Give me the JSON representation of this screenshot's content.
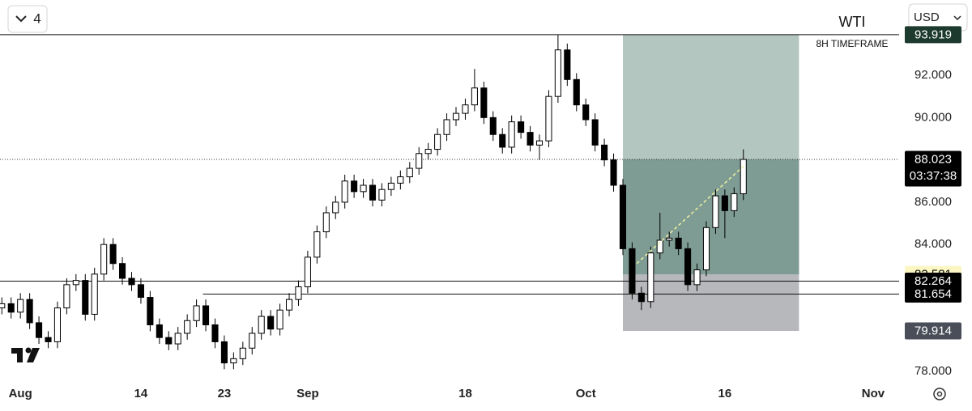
{
  "ui": {
    "interval_button": "4",
    "currency": "USD"
  },
  "chart_data": {
    "type": "candlestick",
    "title": "WTI",
    "subtitle": "8H TIMEFRAME",
    "x": [
      -2,
      -1,
      0,
      1,
      2,
      3,
      4,
      5,
      6,
      7,
      8,
      9,
      10,
      11,
      12,
      13,
      14,
      15,
      16,
      17,
      18,
      19,
      20,
      21,
      22,
      23,
      24,
      25,
      26,
      27,
      28,
      29,
      30,
      31,
      32,
      33,
      34,
      35,
      36,
      37,
      38,
      39,
      40,
      41,
      42,
      43,
      44,
      45,
      46,
      47,
      48,
      49,
      50,
      51,
      52,
      53,
      54,
      55,
      56,
      57,
      58,
      59,
      60,
      61,
      62,
      63,
      64,
      65,
      66,
      67,
      68,
      69,
      70,
      71,
      72,
      73,
      74,
      75,
      76,
      77,
      78
    ],
    "open": [
      81.0,
      81.2,
      80.8,
      81.4,
      80.3,
      79.6,
      79.4,
      81.0,
      82.1,
      82.3,
      80.7,
      82.6,
      84.0,
      83.1,
      82.4,
      82.1,
      81.5,
      80.2,
      79.6,
      79.3,
      79.8,
      80.4,
      81.1,
      80.2,
      79.4,
      78.4,
      78.6,
      79.1,
      79.8,
      80.6,
      80.0,
      80.9,
      81.4,
      82.0,
      83.4,
      84.6,
      85.5,
      86.0,
      87.0,
      86.5,
      86.8,
      86.1,
      86.6,
      86.9,
      87.2,
      87.6,
      88.3,
      88.5,
      89.2,
      89.9,
      90.2,
      90.6,
      91.4,
      90.0,
      89.2,
      88.6,
      89.8,
      89.3,
      88.7,
      88.9,
      91.0,
      93.2,
      91.8,
      90.6,
      89.9,
      88.7,
      88.0,
      86.8,
      83.8,
      81.7,
      81.3,
      83.6,
      84.2,
      84.3,
      83.8,
      82.1,
      82.8,
      84.8,
      86.3,
      85.6,
      86.4
    ],
    "high": [
      81.5,
      81.5,
      81.7,
      81.7,
      80.6,
      79.9,
      81.3,
      82.4,
      82.6,
      82.6,
      82.9,
      84.3,
      84.3,
      83.4,
      82.7,
      82.4,
      81.8,
      80.5,
      79.9,
      80.1,
      80.7,
      81.4,
      81.4,
      80.5,
      79.7,
      78.9,
      79.4,
      80.1,
      80.9,
      80.9,
      81.2,
      81.7,
      82.3,
      83.7,
      84.9,
      85.8,
      86.3,
      87.3,
      87.3,
      87.1,
      87.1,
      86.9,
      87.2,
      87.5,
      87.9,
      88.6,
      88.8,
      89.5,
      90.2,
      90.5,
      90.9,
      92.3,
      91.7,
      90.3,
      89.5,
      90.1,
      90.1,
      89.6,
      89.2,
      91.3,
      93.9,
      93.5,
      92.1,
      90.9,
      90.2,
      89.0,
      88.3,
      87.1,
      84.1,
      82.0,
      83.9,
      85.5,
      84.6,
      84.6,
      84.1,
      83.1,
      85.1,
      86.6,
      86.6,
      86.7,
      88.5
    ],
    "low": [
      80.7,
      80.5,
      80.5,
      80.0,
      79.3,
      79.1,
      79.1,
      80.7,
      81.8,
      80.4,
      80.4,
      82.3,
      82.8,
      82.1,
      81.8,
      81.2,
      79.9,
      79.3,
      79.0,
      79.0,
      79.5,
      80.1,
      79.9,
      79.1,
      78.1,
      78.1,
      78.3,
      78.8,
      79.5,
      79.7,
      79.7,
      80.6,
      81.1,
      81.7,
      83.1,
      84.3,
      85.2,
      85.7,
      86.2,
      86.2,
      85.8,
      85.8,
      86.3,
      86.6,
      86.9,
      87.3,
      88.0,
      88.2,
      88.9,
      89.6,
      89.9,
      90.3,
      89.7,
      88.9,
      88.3,
      88.3,
      89.0,
      88.4,
      88.0,
      88.6,
      90.7,
      91.5,
      90.3,
      89.6,
      88.4,
      87.7,
      86.5,
      83.5,
      81.4,
      80.9,
      81.0,
      83.3,
      83.9,
      83.5,
      81.8,
      81.8,
      82.5,
      84.5,
      84.3,
      85.3,
      86.1
    ],
    "close": [
      81.2,
      80.8,
      81.4,
      80.3,
      79.6,
      79.4,
      81.0,
      82.1,
      82.3,
      80.7,
      82.6,
      84.0,
      83.1,
      82.4,
      82.1,
      81.5,
      80.2,
      79.6,
      79.3,
      79.8,
      80.4,
      81.1,
      80.2,
      79.4,
      78.4,
      78.6,
      79.1,
      79.8,
      80.6,
      80.0,
      80.9,
      81.4,
      82.0,
      83.4,
      84.6,
      85.5,
      86.0,
      87.0,
      86.5,
      86.8,
      86.1,
      86.6,
      86.9,
      87.2,
      87.6,
      88.3,
      88.5,
      89.2,
      89.9,
      90.2,
      90.6,
      91.4,
      90.0,
      89.2,
      88.6,
      89.8,
      89.3,
      88.7,
      88.9,
      91.0,
      93.2,
      91.8,
      90.6,
      89.9,
      88.7,
      88.0,
      86.8,
      83.8,
      81.7,
      81.3,
      83.6,
      84.2,
      84.3,
      83.8,
      82.1,
      82.8,
      84.8,
      86.3,
      85.6,
      86.4,
      88.023
    ],
    "up_color": "#ffffff",
    "down_color": "#000000",
    "xlim": [
      -2.2,
      94.8
    ],
    "xticks": [
      {
        "value": 0,
        "label": "Aug"
      },
      {
        "value": 13,
        "label": "14"
      },
      {
        "value": 22,
        "label": "23"
      },
      {
        "value": 31,
        "label": "Sep"
      },
      {
        "value": 48,
        "label": "18"
      },
      {
        "value": 61,
        "label": "Oct"
      },
      {
        "value": 76,
        "label": "16"
      },
      {
        "value": 92,
        "label": "Nov"
      }
    ],
    "ylim": [
      77.58,
      95.56
    ],
    "yticks": [
      {
        "value": 78,
        "label": "78.000"
      },
      {
        "value": 84,
        "label": "84.000"
      },
      {
        "value": 86,
        "label": "86.000"
      },
      {
        "value": 90,
        "label": "90.000"
      },
      {
        "value": 92,
        "label": "92.000"
      }
    ],
    "grid": false,
    "last_price": 88.023,
    "countdown": "03:37:38",
    "lines": [
      {
        "y": 82.264,
        "x0": -2.2
      },
      {
        "y": 81.654,
        "x0": 19.7
      }
    ],
    "position": {
      "entry": 82.581,
      "target": 93.919,
      "stop": 79.914,
      "start": 65,
      "end": 84
    },
    "trendline": {
      "x": [
        66.5,
        78
      ],
      "y": [
        83.1,
        87.7
      ]
    }
  }
}
